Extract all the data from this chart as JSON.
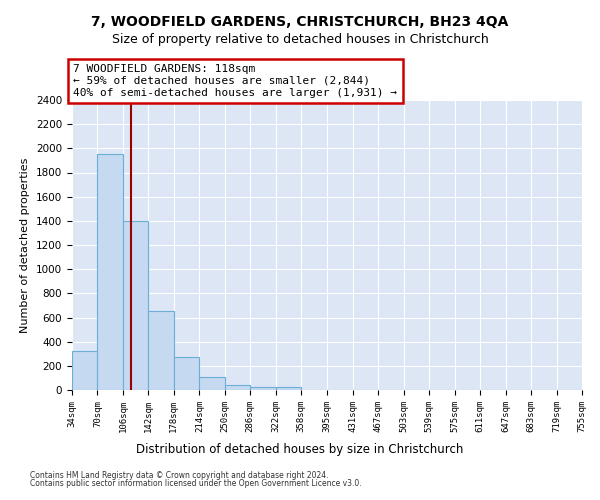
{
  "title": "7, WOODFIELD GARDENS, CHRISTCHURCH, BH23 4QA",
  "subtitle": "Size of property relative to detached houses in Christchurch",
  "xlabel": "Distribution of detached houses by size in Christchurch",
  "ylabel": "Number of detached properties",
  "bar_color": "#c5d9f0",
  "bar_edge_color": "#6baed6",
  "background_color": "#dce6f5",
  "grid_color": "#ffffff",
  "bins": [
    34,
    70,
    106,
    142,
    178,
    214,
    250,
    286,
    322,
    358,
    395,
    431,
    467,
    503,
    539,
    575,
    611,
    647,
    683,
    719,
    755
  ],
  "counts": [
    320,
    1950,
    1400,
    650,
    275,
    105,
    42,
    28,
    25,
    0,
    0,
    0,
    0,
    0,
    0,
    0,
    0,
    0,
    0,
    0
  ],
  "property_size": 118,
  "vline_color": "#990000",
  "annotation_text": "7 WOODFIELD GARDENS: 118sqm\n← 59% of detached houses are smaller (2,844)\n40% of semi-detached houses are larger (1,931) →",
  "annotation_box_color": "#ffffff",
  "annotation_box_edge": "#cc0000",
  "ylim": [
    0,
    2400
  ],
  "yticks": [
    0,
    200,
    400,
    600,
    800,
    1000,
    1200,
    1400,
    1600,
    1800,
    2000,
    2200,
    2400
  ],
  "footnote1": "Contains HM Land Registry data © Crown copyright and database right 2024.",
  "footnote2": "Contains public sector information licensed under the Open Government Licence v3.0.",
  "title_fontsize": 10,
  "subtitle_fontsize": 9
}
